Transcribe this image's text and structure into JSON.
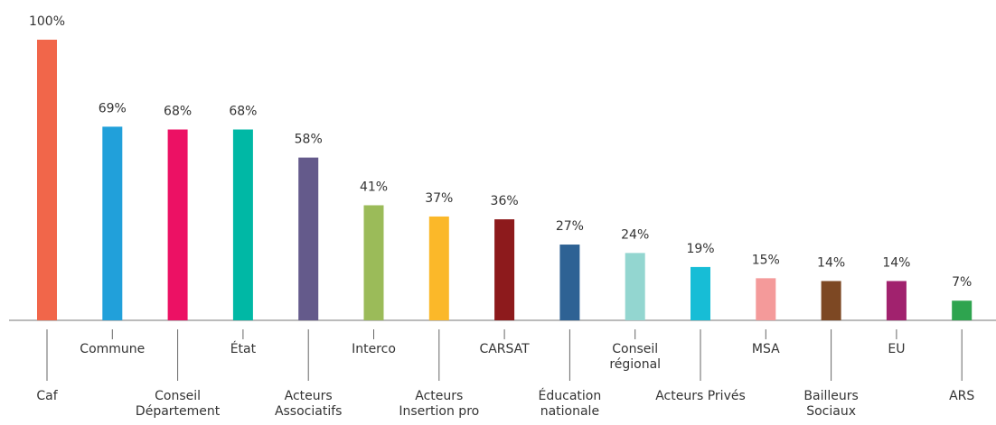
{
  "chart_data": {
    "type": "bar",
    "categories": [
      "Caf",
      "Commune",
      "Conseil Département",
      "État",
      "Acteurs Associatifs",
      "Interco",
      "Acteurs Insertion pro",
      "CARSAT",
      "Éducation nationale",
      "Conseil régional",
      "Acteurs Privés",
      "MSA",
      "Bailleurs Sociaux",
      "EU",
      "ARS"
    ],
    "values": [
      100,
      69,
      68,
      68,
      58,
      41,
      37,
      36,
      27,
      24,
      19,
      15,
      14,
      14,
      7
    ],
    "value_labels": [
      "100%",
      "69%",
      "68%",
      "68%",
      "58%",
      "41%",
      "37%",
      "36%",
      "27%",
      "24%",
      "19%",
      "15%",
      "14%",
      "14%",
      "7%"
    ],
    "colors": [
      "#f1664a",
      "#21a0da",
      "#ec1164",
      "#00b8a5",
      "#645a8b",
      "#9bbb59",
      "#fbb829",
      "#8d1a1c",
      "#2e6294",
      "#93d6d0",
      "#17bdd6",
      "#f49a9a",
      "#7d4823",
      "#a1226e",
      "#2ea44f"
    ],
    "ylim": [
      0,
      100
    ]
  }
}
